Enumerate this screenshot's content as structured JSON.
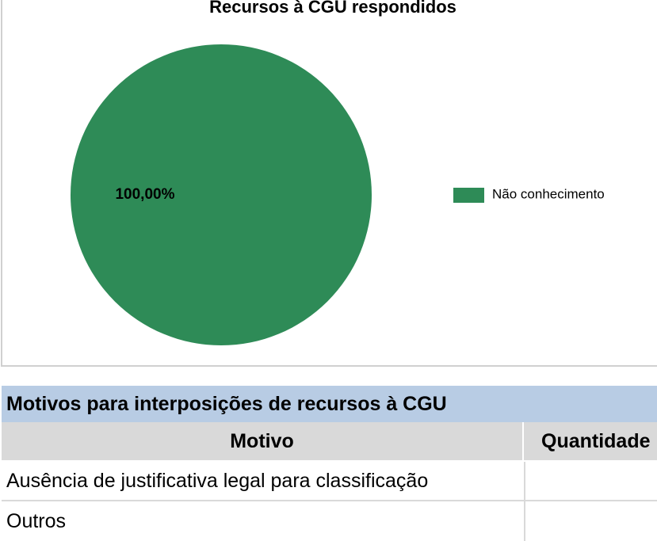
{
  "chart_data": {
    "type": "pie",
    "title": "Recursos à CGU respondidos",
    "categories": [
      "Não conhecimento"
    ],
    "values": [
      100
    ],
    "value_labels": [
      "100,00%"
    ],
    "colors": [
      "#2e8b57"
    ],
    "legend": "right"
  },
  "table": {
    "title": "Motivos para interposições de recursos à CGU",
    "header": [
      "Motivo",
      "Quantidade"
    ],
    "rows": [
      [
        "Ausência de justificativa legal para classificação"
      ],
      [
        "Outros"
      ]
    ]
  }
}
